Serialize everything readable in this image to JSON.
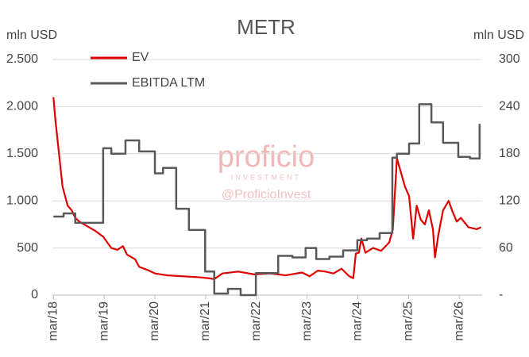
{
  "chart_data": {
    "type": "line",
    "title": "METR",
    "ylabel": "mln USD",
    "y2label": "mln USD",
    "watermark": [
      "proficio",
      "INVESTMENT",
      "@ProficioInvest"
    ],
    "xlim": [
      2018.15,
      2026.62
    ],
    "xticks": [
      {
        "value": 2018.17,
        "label": "mar/18"
      },
      {
        "value": 2019.17,
        "label": "mar/19"
      },
      {
        "value": 2020.17,
        "label": "mar/20"
      },
      {
        "value": 2021.17,
        "label": "mar/21"
      },
      {
        "value": 2022.17,
        "label": "mar/22"
      },
      {
        "value": 2023.17,
        "label": "mar/23"
      },
      {
        "value": 2024.17,
        "label": "mar/24"
      },
      {
        "value": 2025.17,
        "label": "mar/25"
      },
      {
        "value": 2026.17,
        "label": "mar/26"
      }
    ],
    "ylim": [
      0,
      2500
    ],
    "yticks": [
      0,
      500,
      {
        "value": 1000,
        "label": "1.000"
      },
      {
        "value": 1500,
        "label": "1.500"
      },
      {
        "value": 2000,
        "label": "2.000"
      },
      {
        "value": 2500,
        "label": "2.500"
      }
    ],
    "y2lim": [
      0,
      300
    ],
    "y2ticks": [
      {
        "value": 0,
        "label": "-"
      },
      60,
      120,
      180,
      240,
      300
    ],
    "grid": true,
    "legend": "upper left",
    "series": [
      {
        "name": "EV",
        "color": "#e00000",
        "x": [
          2018.17,
          2018.21,
          2018.26,
          2018.31,
          2018.35,
          2018.4,
          2018.45,
          2018.53,
          2018.6,
          2018.68,
          2018.84,
          2019.0,
          2019.15,
          2019.23,
          2019.31,
          2019.43,
          2019.54,
          2019.62,
          2019.78,
          2019.86,
          2020.01,
          2020.17,
          2020.41,
          2020.72,
          2021.03,
          2021.22,
          2021.34,
          2021.5,
          2021.81,
          2022.13,
          2022.44,
          2022.75,
          2023.07,
          2023.22,
          2023.38,
          2023.53,
          2023.69,
          2023.85,
          2024.0,
          2024.08,
          2024.13,
          2024.19,
          2024.24,
          2024.32,
          2024.47,
          2024.63,
          2024.79,
          2024.86,
          2024.94,
          2025.02,
          2025.1,
          2025.18,
          2025.26,
          2025.33,
          2025.41,
          2025.49,
          2025.57,
          2025.65,
          2025.69,
          2025.76,
          2025.85,
          2025.96,
          2026.04,
          2026.12,
          2026.2,
          2026.35,
          2026.51,
          2026.6
        ],
        "values": [
          2100,
          1850,
          1600,
          1350,
          1150,
          1050,
          950,
          900,
          820,
          780,
          730,
          680,
          620,
          560,
          500,
          480,
          520,
          430,
          380,
          300,
          270,
          230,
          210,
          200,
          190,
          180,
          170,
          230,
          250,
          220,
          230,
          210,
          240,
          200,
          260,
          250,
          230,
          280,
          200,
          180,
          440,
          450,
          600,
          450,
          500,
          470,
          560,
          700,
          1450,
          1300,
          1150,
          1050,
          600,
          950,
          800,
          750,
          900,
          700,
          400,
          650,
          900,
          1000,
          880,
          780,
          820,
          720,
          700,
          720
        ]
      },
      {
        "name": "EBITDA LTM",
        "color": "#595959",
        "axis": "y2",
        "step": "post",
        "x": [
          2018.17,
          2018.37,
          2018.6,
          2019.15,
          2019.31,
          2019.59,
          2019.86,
          2020.17,
          2020.33,
          2020.59,
          2020.84,
          2021.16,
          2021.34,
          2021.61,
          2021.86,
          2022.16,
          2022.6,
          2022.88,
          2023.14,
          2023.35,
          2023.61,
          2023.88,
          2024.16,
          2024.35,
          2024.6,
          2024.85,
          2024.94,
          2025.18,
          2025.38,
          2025.62,
          2025.85,
          2026.15,
          2026.38,
          2026.57
        ],
        "values": [
          100,
          104,
          92,
          187,
          180,
          197,
          183,
          155,
          162,
          110,
          83,
          30,
          2,
          8,
          0,
          28,
          50,
          48,
          60,
          46,
          49,
          57,
          70,
          72,
          79,
          175,
          180,
          193,
          243,
          220,
          194,
          176,
          174,
          218
        ]
      }
    ]
  }
}
